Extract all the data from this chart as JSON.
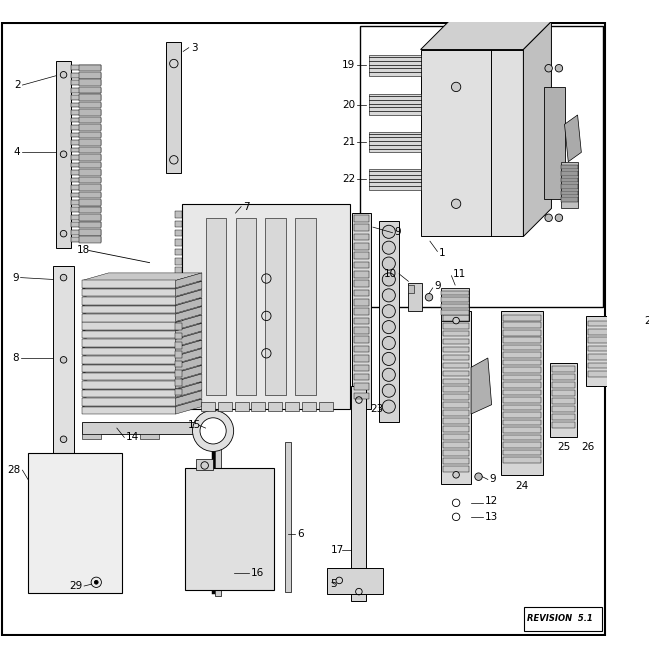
{
  "bg_color": "#ffffff",
  "revision_text": "REVISION  5.1",
  "lc": "#000000",
  "gray1": "#e8e8e8",
  "gray2": "#d0d0d0",
  "gray3": "#b8b8b8",
  "gray4": "#a0a0a0"
}
